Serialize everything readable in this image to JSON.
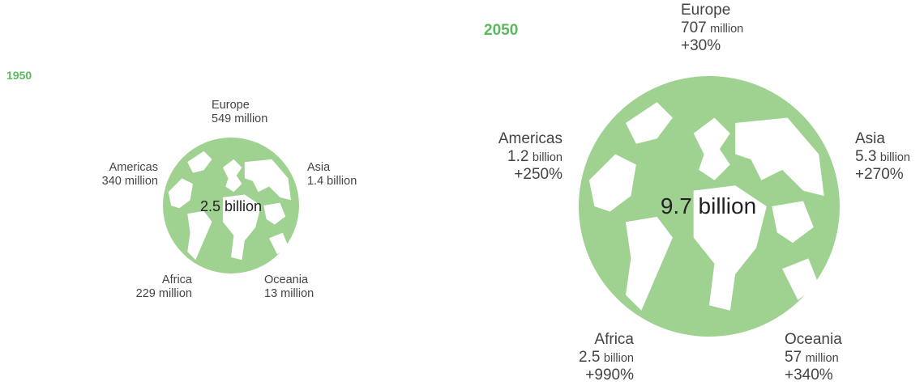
{
  "colors": {
    "globe": "#9fd191",
    "year": "#5cb85c",
    "land": "#ffffff"
  },
  "panels": [
    {
      "year": "1950",
      "total": "2.5 billion",
      "regions": {
        "europe": {
          "name": "Europe",
          "value": "549 million"
        },
        "americas": {
          "name": "Americas",
          "value": "340 million"
        },
        "asia": {
          "name": "Asia",
          "value": "1.4 billion"
        },
        "africa": {
          "name": "Africa",
          "value": "229 million"
        },
        "oceania": {
          "name": "Oceania",
          "value": "13 million"
        }
      }
    },
    {
      "year": "2050",
      "total": "9.7 billion",
      "regions": {
        "europe": {
          "name": "Europe",
          "num": "707",
          "unit": "million",
          "change": "+30%"
        },
        "americas": {
          "name": "Americas",
          "num": "1.2",
          "unit": "billion",
          "change": "+250%"
        },
        "asia": {
          "name": "Asia",
          "num": "5.3",
          "unit": "billion",
          "change": "+270%"
        },
        "africa": {
          "name": "Africa",
          "num": "2.5",
          "unit": "billion",
          "change": "+990%"
        },
        "oceania": {
          "name": "Oceania",
          "num": "57",
          "unit": "million",
          "change": "+340%"
        }
      }
    }
  ]
}
